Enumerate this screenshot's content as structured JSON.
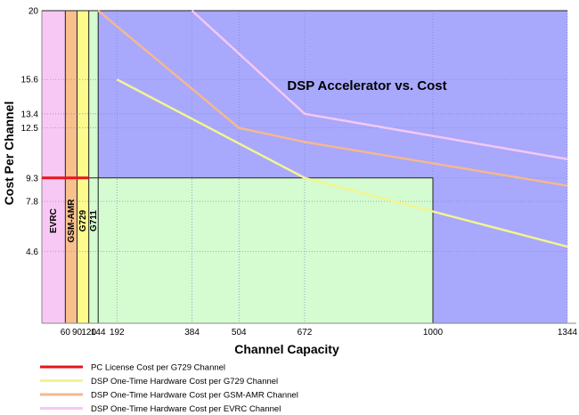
{
  "chart_data": {
    "type": "line",
    "title": "DSP Accelerator vs. Cost",
    "xlabel": "Channel Capacity",
    "ylabel": "Cost Per Channel",
    "x_ticks": [
      60,
      90,
      120,
      144,
      192,
      384,
      504,
      672,
      1000,
      1344
    ],
    "x_tick_labels": [
      "60",
      "90",
      "120",
      "144",
      "192",
      "384",
      "504",
      "672",
      "1000",
      "1344"
    ],
    "y_ticks": [
      4.6,
      7.8,
      9.3,
      12.5,
      13.4,
      15.6,
      20
    ],
    "y_tick_labels": [
      "4.6",
      "7.8",
      "9.3",
      "12.5",
      "13.4",
      "15.6",
      "20"
    ],
    "xlim": [
      0,
      1344
    ],
    "ylim": [
      0,
      20
    ],
    "grid": true,
    "legend_position": "bottom",
    "bands": [
      {
        "label": "EVRC",
        "x_from": 0,
        "x_to": 60,
        "color": "#f8c8f4"
      },
      {
        "label": "GSM-AMR",
        "x_from": 60,
        "x_to": 90,
        "color": "#f8c08c"
      },
      {
        "label": "G729",
        "x_from": 90,
        "x_to": 120,
        "color": "#fcfc8c"
      },
      {
        "label": "G711",
        "x_from": 120,
        "x_to": 144,
        "color": "#d4fcd0"
      }
    ],
    "regions": [
      {
        "kind": "background",
        "color": "#a8a8fc"
      },
      {
        "kind": "savings",
        "color": "#d4fcd0",
        "x_from": 120,
        "x_to": 1000,
        "y_top": 9.3
      }
    ],
    "series": [
      {
        "name": "PC License Cost per G729 Channel",
        "color": "#e8141c",
        "x": [
          0,
          120
        ],
        "y": [
          9.3,
          9.3
        ]
      },
      {
        "name": "DSP One-Time Hardware Cost per G729 Channel",
        "color": "#f4f490",
        "x": [
          192,
          672,
          1344
        ],
        "y": [
          15.6,
          9.3,
          4.9
        ]
      },
      {
        "name": "DSP One-Time Hardware Cost per GSM-AMR Channel",
        "color": "#f4b890",
        "x": [
          144,
          504,
          672,
          1344
        ],
        "y": [
          20,
          12.5,
          11.6,
          8.8
        ]
      },
      {
        "name": "DSP One-Time Hardware Cost per EVRC Channel",
        "color": "#f4c8f4",
        "x": [
          384,
          672,
          1344
        ],
        "y": [
          20,
          13.4,
          10.5
        ]
      }
    ]
  }
}
